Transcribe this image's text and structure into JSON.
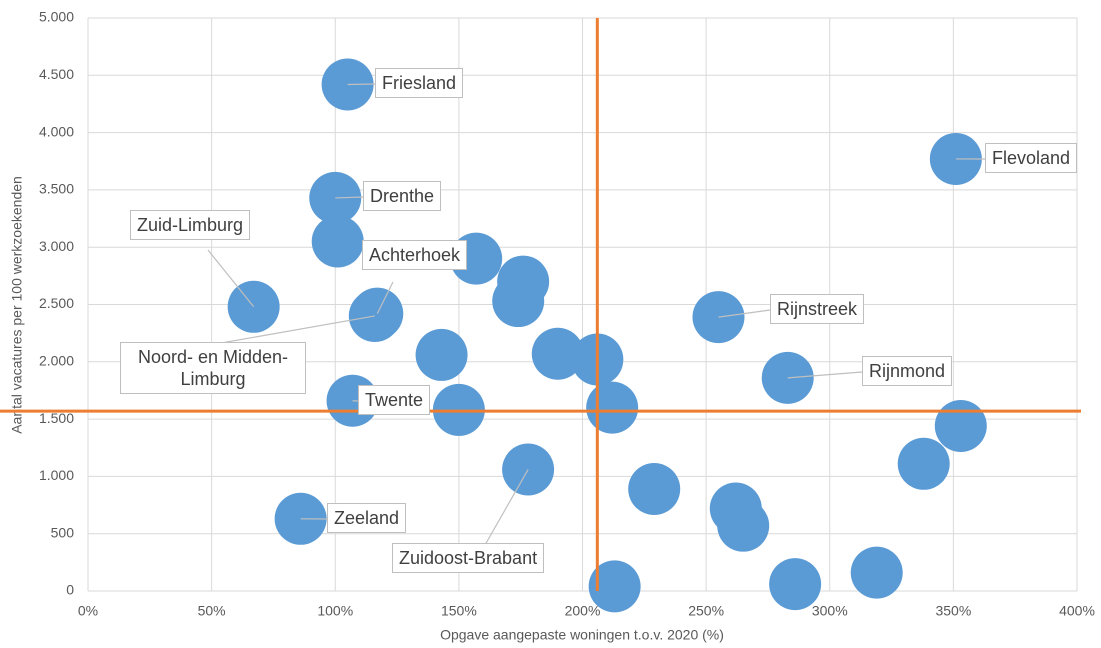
{
  "chart_data": {
    "type": "scatter",
    "x_label": "Opgave aangepaste woningen t.o.v. 2020 (%)",
    "y_label": "Aantal vacatures per 100 werkzoekenden",
    "x": [
      105,
      351,
      100,
      101,
      67,
      117,
      116,
      157,
      176,
      174,
      255,
      143,
      190,
      206,
      283,
      107,
      150,
      212,
      353,
      338,
      178,
      229,
      262,
      265,
      86,
      213,
      286,
      319
    ],
    "series": [
      {
        "color": "#5b9bd5",
        "values": [
          4420,
          3770,
          3430,
          3050,
          2480,
          2420,
          2400,
          2900,
          2700,
          2530,
          2390,
          2060,
          2070,
          2020,
          1860,
          1660,
          1580,
          1600,
          1440,
          1110,
          1060,
          890,
          720,
          570,
          630,
          40,
          60,
          160
        ]
      }
    ],
    "point_labels": [
      "Friesland",
      "Flevoland",
      "Drenthe",
      null,
      "Zuid-Limburg",
      "Achterhoek",
      "Noord- en Midden-Limburg",
      null,
      null,
      null,
      "Rijnstreek",
      null,
      null,
      null,
      "Rijnmond",
      "Twente",
      null,
      null,
      null,
      null,
      "Zuidoost-Brabant",
      null,
      null,
      null,
      "Zeeland",
      null,
      null,
      null
    ],
    "reference_lines": {
      "x": 206,
      "y": 1570,
      "color": "#ed7d31"
    },
    "xlim": [
      0,
      400
    ],
    "xticks": [
      {
        "value": 0,
        "label": "0%"
      },
      {
        "value": 50,
        "label": "50%"
      },
      {
        "value": 100,
        "label": "100%"
      },
      {
        "value": 150,
        "label": "150%"
      },
      {
        "value": 200,
        "label": "200%"
      },
      {
        "value": 250,
        "label": "250%"
      },
      {
        "value": 300,
        "label": "300%"
      },
      {
        "value": 350,
        "label": "350%"
      },
      {
        "value": 400,
        "label": "400%"
      }
    ],
    "ylim": [
      0,
      5000
    ],
    "yticks": [
      0,
      500,
      {
        "value": 1000,
        "label": "1.000"
      },
      {
        "value": 1500,
        "label": "1.500"
      },
      {
        "value": 2000,
        "label": "2.000"
      },
      {
        "value": 2500,
        "label": "2.500"
      },
      {
        "value": 3000,
        "label": "3.000"
      },
      {
        "value": 3500,
        "label": "3.500"
      },
      {
        "value": 4000,
        "label": "4.000"
      },
      {
        "value": 4500,
        "label": "4.500"
      },
      {
        "value": 5000,
        "label": "5.000"
      }
    ],
    "grid": true
  }
}
